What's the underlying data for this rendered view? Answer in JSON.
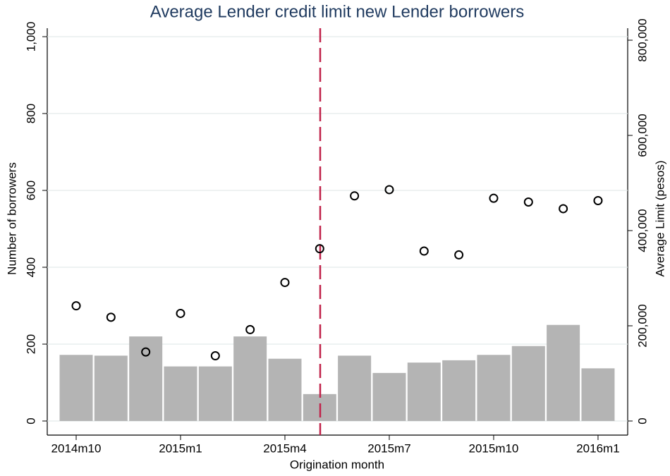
{
  "chart_data": {
    "type": "combo",
    "title": "Average Lender credit limit new Lender borrowers",
    "xlabel": "Origination month",
    "ylabel": "Number of borrowers",
    "y2label": "Average Limit (pesos)",
    "categories": [
      "2014m10",
      null,
      null,
      "2015m1",
      null,
      null,
      "2015m4",
      null,
      null,
      "2015m7",
      null,
      null,
      "2015m10",
      null,
      null,
      "2016m1"
    ],
    "series": [
      {
        "type": "bar",
        "color": "#b4b4b4",
        "axis": "y",
        "values": [
          172,
          170,
          220,
          142,
          142,
          220,
          162,
          70,
          170,
          125,
          152,
          158,
          172,
          195,
          250,
          137
        ]
      },
      {
        "type": "scatter",
        "color": "#000000",
        "axis": "y2",
        "values": [
          242000,
          218000,
          145000,
          226000,
          137000,
          192000,
          291000,
          362000,
          473000,
          486000,
          357000,
          349000,
          468000,
          460000,
          446000,
          463000
        ]
      }
    ],
    "ylim": [
      0,
      1000
    ],
    "yticks": [
      0,
      200,
      400,
      600,
      800,
      {
        "value": 1000,
        "label": "1,000"
      }
    ],
    "y2lim": [
      0,
      800000
    ],
    "y2ticks": [
      0,
      {
        "value": 200000,
        "label": "200,000"
      },
      {
        "value": 400000,
        "label": "400,000"
      },
      {
        "value": 600000,
        "label": "600,000"
      },
      {
        "value": 800000,
        "label": "800,000"
      }
    ],
    "grid": true
  }
}
